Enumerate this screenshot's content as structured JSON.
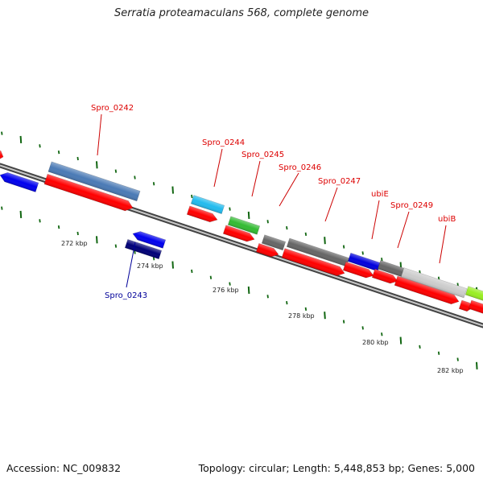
{
  "title": "Serratia proteamaculans 568, complete genome",
  "footer": {
    "accession": "Accession: NC_009832",
    "summary": "Topology: circular; Length: 5,448,853 bp; Genes: 5,000"
  },
  "scale_labels": [
    "272 kbp",
    "274 kbp",
    "276 kbp",
    "278 kbp",
    "280 kbp",
    "282 kbp"
  ],
  "gene_labels": [
    {
      "name": "Spro_0242",
      "color": "#dd0000"
    },
    {
      "name": "Spro_0243",
      "color": "#000099"
    },
    {
      "name": "Spro_0244",
      "color": "#dd0000"
    },
    {
      "name": "Spro_0245",
      "color": "#dd0000"
    },
    {
      "name": "Spro_0246",
      "color": "#dd0000"
    },
    {
      "name": "Spro_0247",
      "color": "#dd0000"
    },
    {
      "name": "ubiE",
      "color": "#dd0000"
    },
    {
      "name": "Spro_0249",
      "color": "#dd0000"
    },
    {
      "name": "ubiB",
      "color": "#dd0000"
    }
  ]
}
